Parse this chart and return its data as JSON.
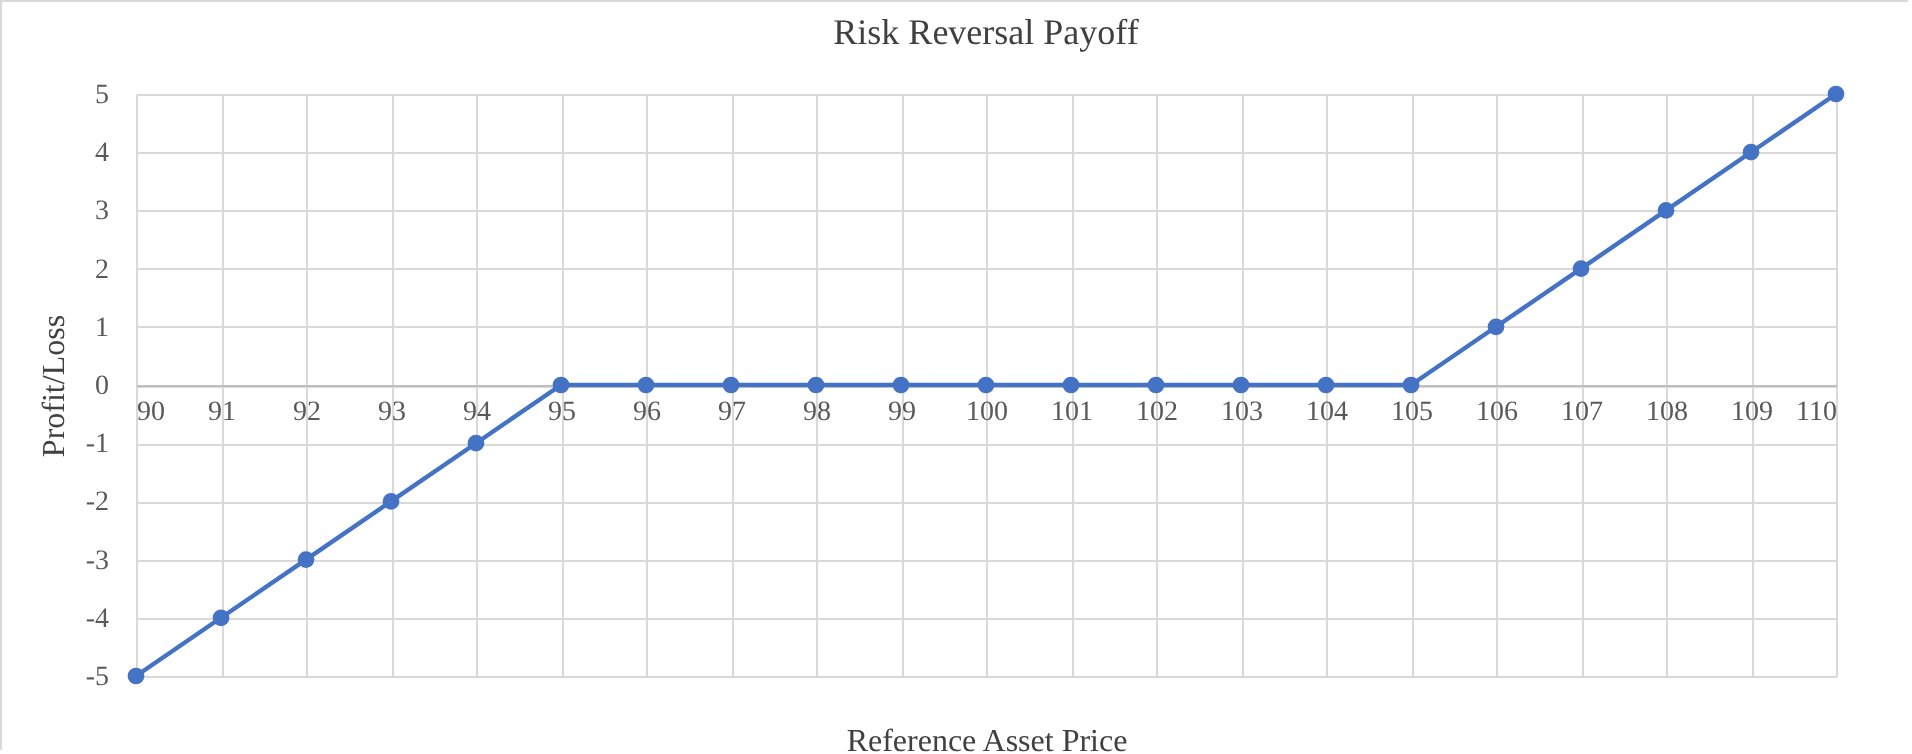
{
  "chart_data": {
    "type": "line",
    "title": "Risk Reversal Payoff",
    "xlabel": "Reference Asset Price",
    "ylabel": "Profit/Loss",
    "x": [
      90,
      91,
      92,
      93,
      94,
      95,
      96,
      97,
      98,
      99,
      100,
      101,
      102,
      103,
      104,
      105,
      106,
      107,
      108,
      109,
      110
    ],
    "series": [
      {
        "color": "#4472c4",
        "values": [
          -5,
          -4,
          -3,
          -2,
          -1,
          0,
          0,
          0,
          0,
          0,
          0,
          0,
          0,
          0,
          0,
          0,
          1,
          2,
          3,
          4,
          5
        ]
      }
    ],
    "xlim": [
      90,
      110
    ],
    "xticks": [
      90,
      91,
      92,
      93,
      94,
      95,
      96,
      97,
      98,
      99,
      100,
      101,
      102,
      103,
      104,
      105,
      106,
      107,
      108,
      109,
      110
    ],
    "ylim": [
      -5,
      5
    ],
    "yticks": [
      -5,
      -4,
      -3,
      -2,
      -1,
      0,
      1,
      2,
      3,
      4,
      5
    ],
    "grid": true,
    "marker": "circle"
  }
}
